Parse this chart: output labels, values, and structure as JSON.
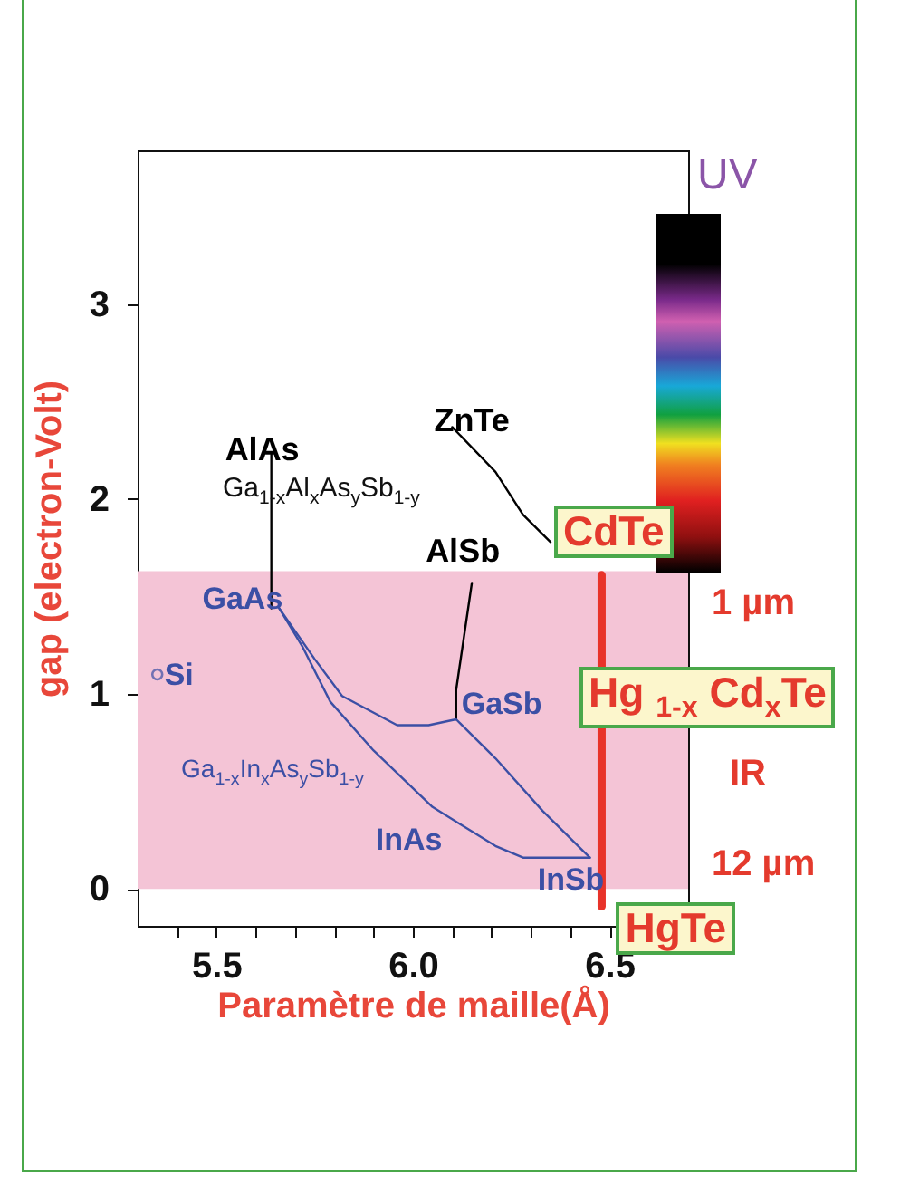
{
  "chart_data": {
    "type": "line",
    "xlabel": "Paramètre de maille(Å)",
    "ylabel": "gap  (electron-Volt)",
    "xlim": [
      5.3,
      6.7
    ],
    "ylim": [
      -0.19,
      3.79
    ],
    "xticks": [
      {
        "value": 5.4,
        "label": null
      },
      5.5,
      {
        "value": 5.6,
        "label": null
      },
      {
        "value": 5.7,
        "label": null
      },
      {
        "value": 5.8,
        "label": null
      },
      {
        "value": 5.9,
        "label": null
      },
      {
        "value": 6,
        "label": "6.0"
      },
      {
        "value": 6.1,
        "label": null
      },
      {
        "value": 6.2,
        "label": null
      },
      {
        "value": 6.3,
        "label": null
      },
      {
        "value": 6.4,
        "label": null
      },
      6.5,
      {
        "value": 6.6,
        "label": null
      }
    ],
    "yticks": [
      0,
      1,
      2,
      3
    ],
    "bands": [
      {
        "axis": "y",
        "from": 0,
        "to": 1.63,
        "color": "#f4c4d6"
      }
    ],
    "series": [
      {
        "color": "#000000",
        "x": [
          5.64,
          5.64
        ],
        "values": [
          2.23,
          1.44
        ]
      },
      {
        "color": "#3b4fa5",
        "x": [
          5.66,
          5.75,
          5.82,
          5.96,
          6.04,
          6.11
        ],
        "values": [
          1.44,
          1.18,
          0.99,
          0.84,
          0.84,
          0.87
        ]
      },
      {
        "color": "#000000",
        "x": [
          6.11,
          6.11,
          6.15
        ],
        "values": [
          0.87,
          1.02,
          1.57
        ]
      },
      {
        "color": "#3b4fa5",
        "x": [
          5.66,
          5.72,
          5.79,
          5.9,
          6.05,
          6.21,
          6.28,
          6.41,
          6.45
        ],
        "values": [
          1.44,
          1.24,
          0.96,
          0.71,
          0.42,
          0.22,
          0.16,
          0.16,
          0.16
        ]
      },
      {
        "color": "#3b4fa5",
        "x": [
          6.11,
          6.21,
          6.33,
          6.45
        ],
        "values": [
          0.87,
          0.67,
          0.4,
          0.16
        ]
      },
      {
        "color": "#000000",
        "x": [
          6.1,
          6.21,
          6.28,
          6.35
        ],
        "values": [
          2.37,
          2.14,
          1.92,
          1.78
        ]
      },
      {
        "color": "#e8332a",
        "x": [
          6.48,
          6.48
        ],
        "values": [
          1.61,
          -0.09
        ]
      },
      {
        "type": "scatter",
        "marker": "circle",
        "color": "#3b4fa5",
        "x": [
          5.35
        ],
        "values": [
          1.1
        ]
      }
    ],
    "annotations": [
      {
        "text": "AlAs",
        "x": 5.64,
        "y": 2.23
      },
      {
        "text": "ZnTe",
        "x": 6.1,
        "y": 2.37
      },
      "Ga$_{1-x}$Al$_{x}$As$_{y}$Sb$_{1-y}$",
      {
        "text": "CdTe",
        "x": 6.35,
        "y": 1.78
      },
      {
        "text": "AlSb",
        "x": 6.15,
        "y": 1.57
      },
      {
        "text": "GaAs",
        "x": 5.66,
        "y": 1.44
      },
      {
        "text": "Si",
        "x": 5.35,
        "y": 1.1
      },
      {
        "text": "GaSb",
        "x": 6.11,
        "y": 0.87
      },
      "Ga$_{1-x}$In$_{x}$As$_{y}$Sb$_{1-y}$",
      {
        "text": "InAs",
        "x": 6.05,
        "y": 0.42
      },
      {
        "text": "InSb",
        "x": 6.45,
        "y": 0.16
      },
      "Hg $_{1-x}$ Cd$_{x}$Te",
      {
        "text": "HgTe",
        "x": 6.48,
        "y": -0.09
      },
      "UV",
      "1 µm",
      "IR",
      "12 µm"
    ]
  }
}
